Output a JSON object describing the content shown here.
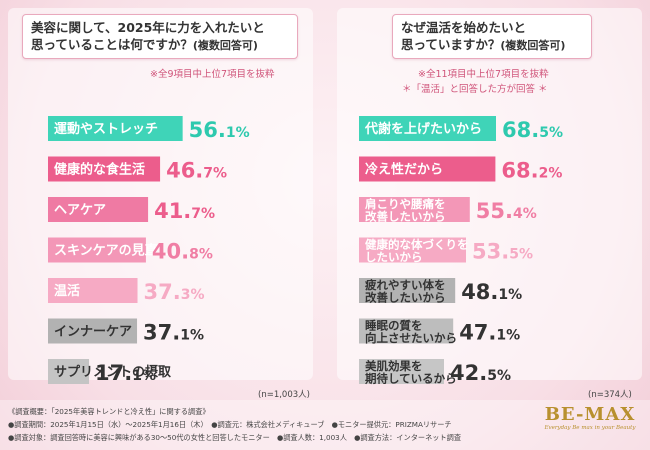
{
  "left": {
    "question_line1": "美容に関して、2025年に力を入れたいと",
    "question_line2": "思っていることは何ですか？",
    "question_suffix": "(複数回答可)",
    "note": "※全9項目中上位7項目を抜粋",
    "n_label": "(n=1,003人)"
  },
  "right": {
    "question_line1": "なぜ温活を始めたいと",
    "question_line2": "思っていますか？",
    "question_suffix": "(複数回答可)",
    "note1": "※全11項目中上位7項目を抜粋",
    "note2": "＊「温活」と回答した方が回答 ＊",
    "n_label": "(n=374人)"
  },
  "footer": {
    "line1": "《調査概要：「2025年美容トレンドと冷え性」に関する調査》",
    "line2": "●調査期間：2025年1月15日（水）～2025年1月16日（木）　●調査元：株式会社メディキューブ　●モニター提供元：PRIZMAリサーチ",
    "line3": "●調査対象：調査回答時に美容に興味がある30～50代の女性と回答したモニター　●調査人数：1,003人　●調査方法：インターネット調査"
  },
  "logo": {
    "main": "BE-MAX",
    "sub": "Everyday Be max in your Beauty"
  },
  "chart_data": [
    {
      "type": "bar",
      "orientation": "horizontal",
      "title": "美容に関して、2025年に力を入れたいと思っていることは何ですか？(複数回答可)",
      "unit": "%",
      "categories": [
        [
          "運動やストレッチ"
        ],
        [
          "健康的な食生活"
        ],
        [
          "ヘアケア"
        ],
        [
          "スキンケアの見直し"
        ],
        [
          "温活"
        ],
        [
          "インナーケア"
        ],
        [
          "サプリメントの摂取"
        ]
      ],
      "values": [
        56.1,
        46.7,
        41.7,
        40.8,
        37.3,
        37.1,
        17.1
      ],
      "colors": [
        "#3fd4b8",
        "#ec5d8c",
        "#ef7aa3",
        "#f397b7",
        "#f6aac4",
        "#b2b2b2",
        "#c4c4c4"
      ],
      "label_colors": [
        "#ffffff",
        "#ffffff",
        "#ffffff",
        "#ffffff",
        "#ffffff",
        "#333333",
        "#333333"
      ],
      "value_colors": [
        "#2ec9ae",
        "#ec5d8c",
        "#ec5d8c",
        "#f07ea4",
        "#f6aac4",
        "#333333",
        "#333333"
      ],
      "xlim": [
        0,
        60
      ],
      "n": "1,003人"
    },
    {
      "type": "bar",
      "orientation": "horizontal",
      "title": "なぜ温活を始めたいと思っていますか？(複数回答可)",
      "unit": "%",
      "categories": [
        [
          "代謝を上げたいから"
        ],
        [
          "冷え性だから"
        ],
        [
          "肩こりや腰痛を",
          "改善したいから"
        ],
        [
          "健康的な体づくりを",
          "したいから"
        ],
        [
          "疲れやすい体を",
          "改善したいから"
        ],
        [
          "睡眠の質を",
          "向上させたいから"
        ],
        [
          "美肌効果を",
          "期待しているから"
        ]
      ],
      "values": [
        68.5,
        68.2,
        55.4,
        53.5,
        48.1,
        47.1,
        42.5
      ],
      "colors": [
        "#3fd4b8",
        "#ec5d8c",
        "#f397b7",
        "#f6aac4",
        "#b2b2b2",
        "#bdbdbd",
        "#c6c6c6"
      ],
      "label_colors": [
        "#ffffff",
        "#ffffff",
        "#ffffff",
        "#ffffff",
        "#333333",
        "#333333",
        "#333333"
      ],
      "value_colors": [
        "#2ec9ae",
        "#ec5d8c",
        "#f07ea4",
        "#f6aac4",
        "#333333",
        "#333333",
        "#333333"
      ],
      "xlim": [
        0,
        75
      ],
      "n": "374人"
    }
  ]
}
